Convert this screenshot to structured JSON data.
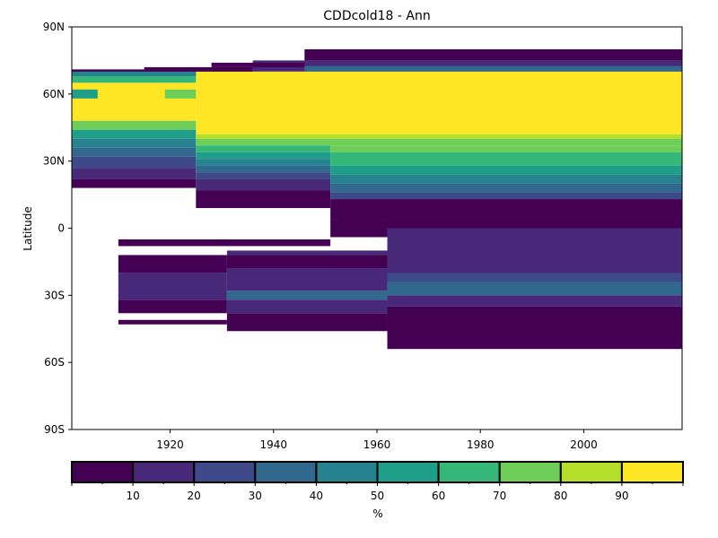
{
  "chart_data": {
    "type": "heatmap",
    "title": "CDDcold18 - Ann",
    "xlabel": "",
    "ylabel": "Latitude",
    "xlim": [
      1901,
      2019
    ],
    "ylim": [
      -90,
      90
    ],
    "x_ticks": [
      1920,
      1940,
      1960,
      1980,
      2000
    ],
    "x_tick_labels": [
      "1920",
      "1940",
      "1960",
      "1980",
      "2000"
    ],
    "y_ticks": [
      -90,
      -60,
      -30,
      0,
      30,
      60,
      90
    ],
    "y_tick_labels": [
      "90S",
      "60S",
      "30S",
      "0",
      "30N",
      "60N",
      "90N"
    ],
    "colorbar": {
      "label": "%",
      "levels": [
        0,
        10,
        20,
        30,
        40,
        50,
        60,
        70,
        80,
        90,
        100
      ],
      "tick_labels": [
        "10",
        "20",
        "30",
        "40",
        "50",
        "60",
        "70",
        "80",
        "90"
      ],
      "colors": [
        "#440154",
        "#482878",
        "#3e4989",
        "#31688e",
        "#26828e",
        "#1f9e89",
        "#35b779",
        "#6ece58",
        "#b5de2b",
        "#fde725"
      ]
    },
    "bands": [
      {
        "y0": 75,
        "y1": 80,
        "x0": 1946,
        "x1": 2019,
        "value": 5
      },
      {
        "y0": 70,
        "y1": 75,
        "x0": 1936,
        "x1": 2019,
        "value": 15
      },
      {
        "y0": 68,
        "y1": 71,
        "x0": 1901,
        "x1": 1936,
        "value": 5
      },
      {
        "y0": 70,
        "y1": 72,
        "x0": 1915,
        "x1": 1936,
        "value": 5
      },
      {
        "y0": 72,
        "y1": 74,
        "x0": 1928,
        "x1": 1946,
        "value": 5
      },
      {
        "y0": 70,
        "y1": 72.5,
        "x0": 1946,
        "x1": 2019,
        "value": 35
      },
      {
        "y0": 68,
        "y1": 70,
        "x0": 1901,
        "x1": 1925,
        "value": 45
      },
      {
        "y0": 42,
        "y1": 70,
        "x0": 1925,
        "x1": 2019,
        "value": 95
      },
      {
        "y0": 65,
        "y1": 68,
        "x0": 1901,
        "x1": 1925,
        "value": 65
      },
      {
        "y0": 48,
        "y1": 65,
        "x0": 1901,
        "x1": 1925,
        "value": 95
      },
      {
        "y0": 58,
        "y1": 62,
        "x0": 1901,
        "x1": 1906,
        "value": 55
      },
      {
        "y0": 58,
        "y1": 62,
        "x0": 1919,
        "x1": 1925,
        "value": 75
      },
      {
        "y0": 44,
        "y1": 48,
        "x0": 1901,
        "x1": 1925,
        "value": 75
      },
      {
        "y0": 40,
        "y1": 44,
        "x0": 1901,
        "x1": 1925,
        "value": 55
      },
      {
        "y0": 36,
        "y1": 40,
        "x0": 1901,
        "x1": 1925,
        "value": 45
      },
      {
        "y0": 32,
        "y1": 36,
        "x0": 1901,
        "x1": 1925,
        "value": 35
      },
      {
        "y0": 27,
        "y1": 32,
        "x0": 1901,
        "x1": 1925,
        "value": 25
      },
      {
        "y0": 22,
        "y1": 27,
        "x0": 1901,
        "x1": 1925,
        "value": 15
      },
      {
        "y0": 18,
        "y1": 22,
        "x0": 1901,
        "x1": 1925,
        "value": 5
      },
      {
        "y0": 40,
        "y1": 42,
        "x0": 1925,
        "x1": 2019,
        "value": 85
      },
      {
        "y0": 37,
        "y1": 40,
        "x0": 1925,
        "x1": 2019,
        "value": 75
      },
      {
        "y0": 34,
        "y1": 37,
        "x0": 1925,
        "x1": 1951,
        "value": 65
      },
      {
        "y0": 31,
        "y1": 34,
        "x0": 1925,
        "x1": 1951,
        "value": 55
      },
      {
        "y0": 28,
        "y1": 31,
        "x0": 1925,
        "x1": 1951,
        "value": 45
      },
      {
        "y0": 25,
        "y1": 28,
        "x0": 1925,
        "x1": 1951,
        "value": 35
      },
      {
        "y0": 22,
        "y1": 25,
        "x0": 1925,
        "x1": 1951,
        "value": 25
      },
      {
        "y0": 17,
        "y1": 22,
        "x0": 1925,
        "x1": 1951,
        "value": 15
      },
      {
        "y0": 9,
        "y1": 17,
        "x0": 1925,
        "x1": 1951,
        "value": 5
      },
      {
        "y0": 34,
        "y1": 37,
        "x0": 1951,
        "x1": 2019,
        "value": 75
      },
      {
        "y0": 28,
        "y1": 34,
        "x0": 1951,
        "x1": 2019,
        "value": 65
      },
      {
        "y0": 24,
        "y1": 28,
        "x0": 1951,
        "x1": 2019,
        "value": 55
      },
      {
        "y0": 20,
        "y1": 24,
        "x0": 1951,
        "x1": 2019,
        "value": 45
      },
      {
        "y0": 16,
        "y1": 20,
        "x0": 1951,
        "x1": 2019,
        "value": 35
      },
      {
        "y0": 13,
        "y1": 16,
        "x0": 1951,
        "x1": 2019,
        "value": 25
      },
      {
        "y0": 4,
        "y1": 13,
        "x0": 1951,
        "x1": 2019,
        "value": 5
      },
      {
        "y0": -4,
        "y1": 4,
        "x0": 1951,
        "x1": 1962,
        "value": 5
      },
      {
        "y0": 0,
        "y1": 7,
        "x0": 1962,
        "x1": 2019,
        "value": 5
      },
      {
        "y0": -24,
        "y1": 0,
        "x0": 1962,
        "x1": 2019,
        "value": 15
      },
      {
        "y0": -8,
        "y1": -5,
        "x0": 1910,
        "x1": 1951,
        "value": 5
      },
      {
        "y0": -20,
        "y1": -12,
        "x0": 1910,
        "x1": 1931,
        "value": 5
      },
      {
        "y0": -32,
        "y1": -20,
        "x0": 1910,
        "x1": 1931,
        "value": 15
      },
      {
        "y0": -38,
        "y1": -32,
        "x0": 1910,
        "x1": 1931,
        "value": 5
      },
      {
        "y0": -43,
        "y1": -41,
        "x0": 1910,
        "x1": 1931,
        "value": 5
      },
      {
        "y0": -12,
        "y1": -10,
        "x0": 1931,
        "x1": 1962,
        "value": 15
      },
      {
        "y0": -18,
        "y1": -12,
        "x0": 1931,
        "x1": 1962,
        "value": 5
      },
      {
        "y0": -28,
        "y1": -18,
        "x0": 1931,
        "x1": 1962,
        "value": 15
      },
      {
        "y0": -32,
        "y1": -28,
        "x0": 1931,
        "x1": 1962,
        "value": 35
      },
      {
        "y0": -38,
        "y1": -32,
        "x0": 1931,
        "x1": 1962,
        "value": 15
      },
      {
        "y0": -46,
        "y1": -38,
        "x0": 1931,
        "x1": 1962,
        "value": 5
      },
      {
        "y0": -20,
        "y1": -24,
        "x0": 1962,
        "x1": 2019,
        "value": 25
      },
      {
        "y0": -24,
        "y1": -30,
        "x0": 1962,
        "x1": 2019,
        "value": 35
      },
      {
        "y0": -30,
        "y1": -35,
        "x0": 1962,
        "x1": 2019,
        "value": 15
      },
      {
        "y0": -35,
        "y1": -54,
        "x0": 1962,
        "x1": 2019,
        "value": 5
      }
    ]
  }
}
